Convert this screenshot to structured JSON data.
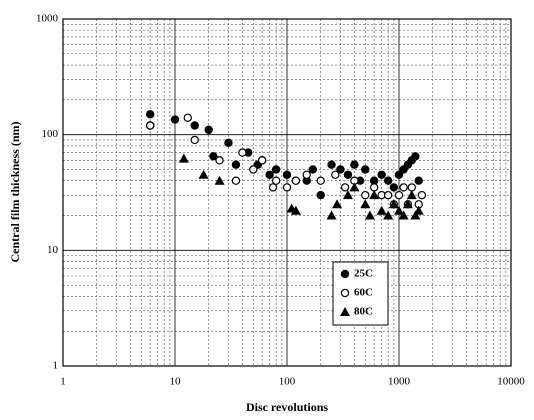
{
  "chart_data": {
    "type": "scatter",
    "xlabel": "Disc revolutions",
    "ylabel": "Central film thickness (nm)",
    "xscale": "log",
    "yscale": "log",
    "xlim": [
      1,
      10000
    ],
    "ylim": [
      1,
      1000
    ],
    "xticks": [
      1,
      10,
      100,
      1000,
      10000
    ],
    "yticks": [
      1,
      10,
      100,
      1000
    ],
    "grid": true,
    "legend": "center right",
    "series": [
      {
        "name": "25C",
        "color": "#000000",
        "marker": "circle-filled",
        "x": [
          6,
          6,
          10,
          15,
          20,
          22,
          30,
          35,
          45,
          55,
          60,
          70,
          80,
          100,
          120,
          150,
          170,
          200,
          250,
          300,
          350,
          400,
          450,
          500,
          600,
          700,
          800,
          900,
          1000,
          1100,
          1200,
          1300,
          1400,
          1500
        ],
        "values": [
          150,
          120,
          135,
          120,
          110,
          65,
          85,
          55,
          70,
          55,
          60,
          45,
          50,
          45,
          40,
          40,
          50,
          30,
          55,
          50,
          45,
          55,
          40,
          50,
          40,
          45,
          40,
          35,
          45,
          50,
          55,
          60,
          65,
          40
        ]
      },
      {
        "name": "60C",
        "color": "#000000",
        "marker": "circle-open",
        "x": [
          6,
          13,
          15,
          25,
          35,
          40,
          50,
          60,
          75,
          80,
          100,
          120,
          150,
          200,
          270,
          330,
          400,
          500,
          600,
          700,
          800,
          900,
          1000,
          1100,
          1200,
          1300,
          1500,
          1600
        ],
        "values": [
          120,
          140,
          90,
          60,
          40,
          70,
          50,
          60,
          35,
          40,
          35,
          40,
          45,
          40,
          45,
          35,
          40,
          30,
          35,
          30,
          30,
          25,
          30,
          35,
          25,
          35,
          25,
          30
        ]
      },
      {
        "name": "80C",
        "color": "#000000",
        "marker": "triangle",
        "x": [
          12,
          18,
          25,
          110,
          120,
          250,
          280,
          350,
          400,
          500,
          550,
          600,
          700,
          800,
          900,
          1000,
          1100,
          1200,
          1300,
          1400,
          1500
        ],
        "values": [
          62,
          45,
          40,
          23,
          22,
          20,
          25,
          30,
          35,
          25,
          20,
          30,
          22,
          20,
          25,
          22,
          20,
          25,
          30,
          20,
          22
        ]
      }
    ]
  }
}
